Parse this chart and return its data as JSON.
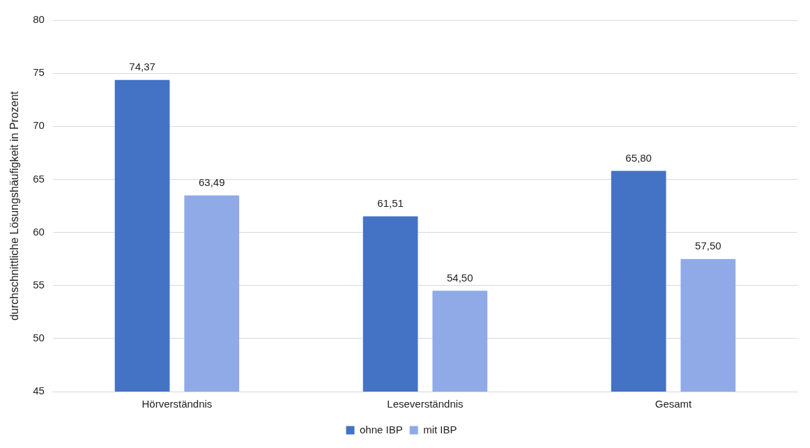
{
  "chart_data": {
    "type": "bar",
    "ylabel": "durchschnittliche Lösungshäufigkeit in Prozent",
    "categories": [
      "Hörverständnis",
      "Leseverständnis",
      "Gesamt"
    ],
    "series": [
      {
        "name": "ohne IBP",
        "color": "#4472c4",
        "values": [
          74.37,
          61.51,
          65.8
        ],
        "value_labels": [
          "74,37",
          "61,51",
          "65,80"
        ]
      },
      {
        "name": "mit IBP",
        "color": "#8faae6",
        "values": [
          63.49,
          54.5,
          57.5
        ],
        "value_labels": [
          "63,49",
          "54,50",
          "57,50"
        ]
      }
    ],
    "ylim": [
      45,
      80
    ],
    "yticks": [
      45,
      50,
      55,
      60,
      65,
      70,
      75,
      80
    ],
    "grid": "y",
    "legend": "bottom"
  }
}
